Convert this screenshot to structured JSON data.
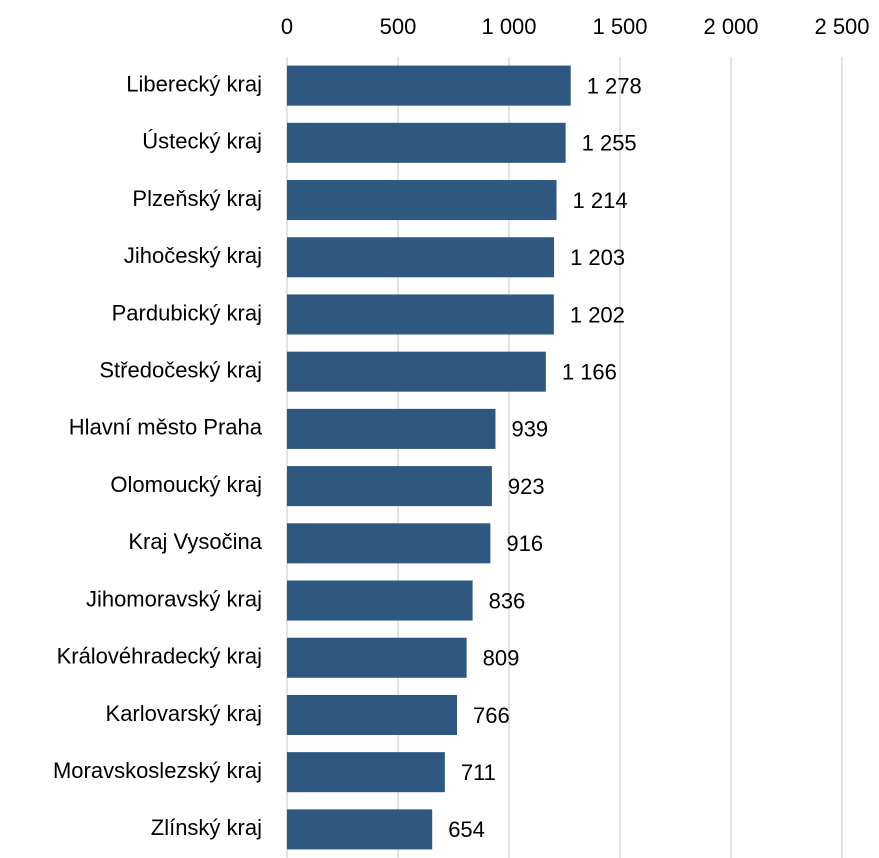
{
  "chart_data": {
    "type": "bar",
    "orientation": "horizontal",
    "categories": [
      "Liberecký kraj",
      "Ústecký kraj",
      "Plzeňský kraj",
      "Jihočeský kraj",
      "Pardubický kraj",
      "Středočeský kraj",
      "Hlavní město Praha",
      "Olomoucký kraj",
      "Kraj Vysočina",
      "Jihomoravský kraj",
      "Královéhradecký kraj",
      "Karlovarský kraj",
      "Moravskoslezský kraj",
      "Zlínský kraj"
    ],
    "values": [
      1278,
      1255,
      1214,
      1203,
      1202,
      1166,
      939,
      923,
      916,
      836,
      809,
      766,
      711,
      654
    ],
    "value_labels": [
      "1 278",
      "1 255",
      "1 214",
      "1 203",
      "1 202",
      "1 166",
      "939",
      "923",
      "916",
      "836",
      "809",
      "766",
      "711",
      "654"
    ],
    "color": "#2f5880",
    "xlim": [
      0,
      2500
    ],
    "xticks": [
      0,
      500,
      {
        "value": 1000,
        "label": "1 000"
      },
      {
        "value": 1500,
        "label": "1 500"
      },
      {
        "value": 2000,
        "label": "2 000"
      },
      {
        "value": 2500,
        "label": "2 500"
      }
    ],
    "grid": true
  }
}
